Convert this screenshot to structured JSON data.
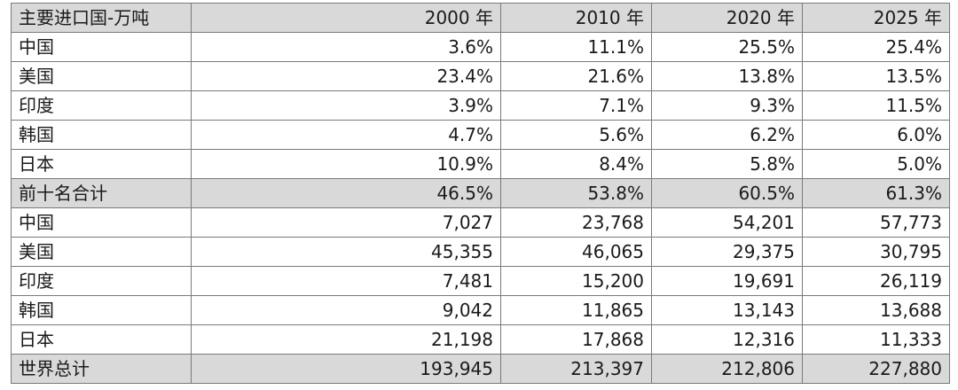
{
  "table": {
    "headers": [
      "主要进口国-万吨",
      "2000 年",
      "2010 年",
      "2020 年",
      "2025 年"
    ],
    "rows": [
      {
        "label": "中国",
        "values": [
          "3.6%",
          "11.1%",
          "25.5%",
          "25.4%"
        ],
        "shaded": false
      },
      {
        "label": "美国",
        "values": [
          "23.4%",
          "21.6%",
          "13.8%",
          "13.5%"
        ],
        "shaded": false
      },
      {
        "label": "印度",
        "values": [
          "3.9%",
          "7.1%",
          "9.3%",
          "11.5%"
        ],
        "shaded": false
      },
      {
        "label": "韩国",
        "values": [
          "4.7%",
          "5.6%",
          "6.2%",
          "6.0%"
        ],
        "shaded": false
      },
      {
        "label": "日本",
        "values": [
          "10.9%",
          "8.4%",
          "5.8%",
          "5.0%"
        ],
        "shaded": false
      },
      {
        "label": "前十名合计",
        "values": [
          "46.5%",
          "53.8%",
          "60.5%",
          "61.3%"
        ],
        "shaded": true
      },
      {
        "label": "中国",
        "values": [
          "7,027",
          "23,768",
          "54,201",
          "57,773"
        ],
        "shaded": false
      },
      {
        "label": "美国",
        "values": [
          "45,355",
          "46,065",
          "29,375",
          "30,795"
        ],
        "shaded": false
      },
      {
        "label": "印度",
        "values": [
          "7,481",
          "15,200",
          "19,691",
          "26,119"
        ],
        "shaded": false
      },
      {
        "label": "韩国",
        "values": [
          "9,042",
          "11,865",
          "13,143",
          "13,688"
        ],
        "shaded": false
      },
      {
        "label": "日本",
        "values": [
          "21,198",
          "17,868",
          "12,316",
          "11,333"
        ],
        "shaded": false
      },
      {
        "label": "世界总计",
        "values": [
          "193,945",
          "213,397",
          "212,806",
          "227,880"
        ],
        "shaded": true
      }
    ]
  },
  "colors": {
    "header_bg": "#d9d9d9",
    "shaded_row_bg": "#d9d9d9",
    "border": "#7a7a7a",
    "text": "#1a1a1a"
  }
}
